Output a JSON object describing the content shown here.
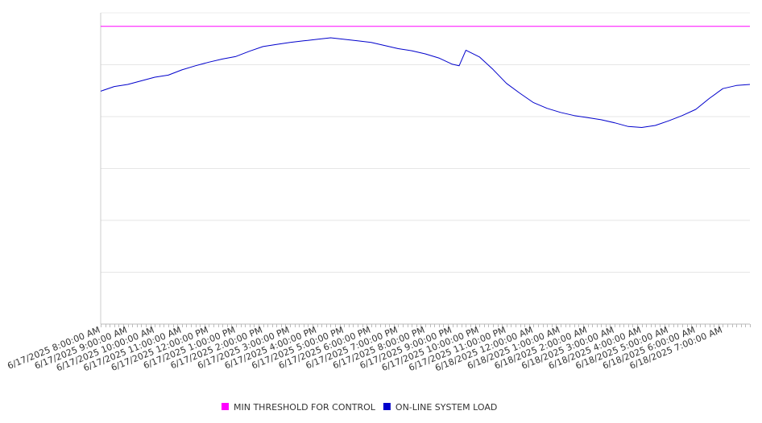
{
  "chart_data": {
    "type": "line",
    "title": "",
    "xlabel": "",
    "ylabel": "",
    "ylim": [
      0,
      6
    ],
    "grid": true,
    "legend_placement": "bottom-center",
    "x_tick_labels": [
      "6/17/2025 8:00:00 AM",
      "6/17/2025 9:00:00 AM",
      "6/17/2025 10:00:00 AM",
      "6/17/2025 11:00:00 AM",
      "6/17/2025 12:00:00 PM",
      "6/17/2025 1:00:00 PM",
      "6/17/2025 2:00:00 PM",
      "6/17/2025 3:00:00 PM",
      "6/17/2025 4:00:00 PM",
      "6/17/2025 5:00:00 PM",
      "6/17/2025 6:00:00 PM",
      "6/17/2025 7:00:00 PM",
      "6/17/2025 8:00:00 PM",
      "6/17/2025 9:00:00 PM",
      "6/17/2025 10:00:00 PM",
      "6/17/2025 11:00:00 PM",
      "6/18/2025 12:00:00 AM",
      "6/18/2025 1:00:00 AM",
      "6/18/2025 2:00:00 AM",
      "6/18/2025 3:00:00 AM",
      "6/18/2025 4:00:00 AM",
      "6/18/2025 5:00:00 AM",
      "6/18/2025 6:00:00 AM",
      "6/18/2025 7:00:00 AM"
    ],
    "x_end": "6/18/2025 8:00:00 AM",
    "series": [
      {
        "name": "MIN THRESHOLD FOR CONTROL",
        "color": "#ff00ff",
        "x": [
          "6/17/2025 8:00:00 AM",
          "6/18/2025 8:00:00 AM"
        ],
        "values": [
          5.74,
          5.74
        ]
      },
      {
        "name": "ON-LINE SYSTEM LOAD",
        "color": "#0000cc",
        "x": [
          "6/17/2025 8:00:00 AM",
          "6/17/2025 8:30:00 AM",
          "6/17/2025 9:00:00 AM",
          "6/17/2025 9:30:00 AM",
          "6/17/2025 10:00:00 AM",
          "6/17/2025 10:30:00 AM",
          "6/17/2025 11:00:00 AM",
          "6/17/2025 11:30:00 AM",
          "6/17/2025 12:00:00 PM",
          "6/17/2025 12:30:00 PM",
          "6/17/2025 1:00:00 PM",
          "6/17/2025 1:30:00 PM",
          "6/17/2025 2:00:00 PM",
          "6/17/2025 2:30:00 PM",
          "6/17/2025 3:00:00 PM",
          "6/17/2025 3:30:00 PM",
          "6/17/2025 4:00:00 PM",
          "6/17/2025 4:30:00 PM",
          "6/17/2025 5:00:00 PM",
          "6/17/2025 5:30:00 PM",
          "6/17/2025 6:00:00 PM",
          "6/17/2025 6:30:00 PM",
          "6/17/2025 7:00:00 PM",
          "6/17/2025 7:30:00 PM",
          "6/17/2025 8:00:00 PM",
          "6/17/2025 8:30:00 PM",
          "6/17/2025 9:00:00 PM",
          "6/17/2025 9:15:00 PM",
          "6/17/2025 9:30:00 PM",
          "6/17/2025 10:00:00 PM",
          "6/17/2025 10:30:00 PM",
          "6/17/2025 11:00:00 PM",
          "6/17/2025 11:30:00 PM",
          "6/18/2025 12:00:00 AM",
          "6/18/2025 12:30:00 AM",
          "6/18/2025 1:00:00 AM",
          "6/18/2025 1:30:00 AM",
          "6/18/2025 2:00:00 AM",
          "6/18/2025 2:30:00 AM",
          "6/18/2025 3:00:00 AM",
          "6/18/2025 3:30:00 AM",
          "6/18/2025 4:00:00 AM",
          "6/18/2025 4:30:00 AM",
          "6/18/2025 5:00:00 AM",
          "6/18/2025 5:30:00 AM",
          "6/18/2025 6:00:00 AM",
          "6/18/2025 6:30:00 AM",
          "6/18/2025 7:00:00 AM",
          "6/18/2025 7:30:00 AM",
          "6/18/2025 8:00:00 AM"
        ],
        "values": [
          4.49,
          4.58,
          4.62,
          4.69,
          4.76,
          4.8,
          4.9,
          4.98,
          5.05,
          5.11,
          5.16,
          5.26,
          5.35,
          5.39,
          5.43,
          5.46,
          5.49,
          5.52,
          5.49,
          5.46,
          5.43,
          5.37,
          5.31,
          5.27,
          5.21,
          5.13,
          5.01,
          4.98,
          5.28,
          5.15,
          4.91,
          4.64,
          4.45,
          4.27,
          4.16,
          4.08,
          4.02,
          3.98,
          3.94,
          3.88,
          3.81,
          3.79,
          3.83,
          3.92,
          4.02,
          4.14,
          4.35,
          4.54,
          4.6,
          4.62
        ]
      }
    ]
  }
}
